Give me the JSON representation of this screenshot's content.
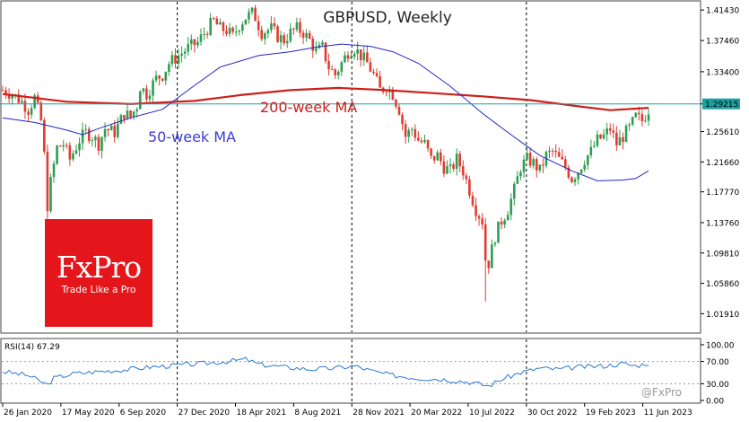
{
  "chart_data": [
    {
      "type": "candlestick",
      "title": "GBPUSD, Weekly",
      "x_tick_labels": [
        "26 Jan 2020",
        "17 May 2020",
        "6 Sep 2020",
        "27 Dec 2020",
        "18 Apr 2021",
        "8 Aug 2021",
        "28 Nov 2021",
        "20 Mar 2022",
        "10 Jul 2022",
        "30 Oct 2022",
        "19 Feb 2023",
        "11 Jun 2023"
      ],
      "y_tick_labels": [
        "1.41430",
        "1.37460",
        "1.33400",
        "1.29215",
        "1.25610",
        "1.21660",
        "1.17770",
        "1.13760",
        "1.09810",
        "1.05860",
        "1.01910"
      ],
      "ylim": [
        0.995,
        1.425
      ],
      "last_price": 1.29215,
      "last_price_label": "1.29215",
      "up_color": "#2e9e4f",
      "down_color": "#e03c31",
      "close_path": [
        [
          0,
          1.31
        ],
        [
          3,
          1.305
        ],
        [
          6,
          1.295
        ],
        [
          8,
          1.285
        ],
        [
          10,
          1.3
        ],
        [
          12,
          1.27
        ],
        [
          13,
          1.225
        ],
        [
          14,
          1.16
        ],
        [
          15,
          1.19
        ],
        [
          17,
          1.235
        ],
        [
          19,
          1.24
        ],
        [
          21,
          1.22
        ],
        [
          24,
          1.245
        ],
        [
          26,
          1.255
        ],
        [
          28,
          1.25
        ],
        [
          30,
          1.24
        ],
        [
          32,
          1.26
        ],
        [
          35,
          1.255
        ],
        [
          38,
          1.28
        ],
        [
          40,
          1.275
        ],
        [
          42,
          1.29
        ],
        [
          43,
          1.315
        ],
        [
          45,
          1.305
        ],
        [
          48,
          1.325
        ],
        [
          50,
          1.33
        ],
        [
          52,
          1.345
        ],
        [
          55,
          1.355
        ],
        [
          58,
          1.365
        ],
        [
          61,
          1.372
        ],
        [
          64,
          1.39
        ],
        [
          66,
          1.4
        ],
        [
          68,
          1.39
        ],
        [
          70,
          1.388
        ],
        [
          72,
          1.38
        ],
        [
          74,
          1.395
        ],
        [
          76,
          1.405
        ],
        [
          78,
          1.41
        ],
        [
          79,
          1.405
        ],
        [
          81,
          1.385
        ],
        [
          84,
          1.39
        ],
        [
          86,
          1.38
        ],
        [
          88,
          1.375
        ],
        [
          90,
          1.385
        ],
        [
          92,
          1.39
        ],
        [
          94,
          1.385
        ],
        [
          96,
          1.375
        ],
        [
          98,
          1.36
        ],
        [
          100,
          1.365
        ],
        [
          102,
          1.34
        ],
        [
          104,
          1.33
        ],
        [
          106,
          1.345
        ],
        [
          108,
          1.36
        ],
        [
          110,
          1.365
        ],
        [
          112,
          1.355
        ],
        [
          114,
          1.345
        ],
        [
          116,
          1.33
        ],
        [
          118,
          1.31
        ],
        [
          120,
          1.315
        ],
        [
          122,
          1.305
        ],
        [
          124,
          1.285
        ],
        [
          126,
          1.25
        ],
        [
          128,
          1.26
        ],
        [
          130,
          1.245
        ],
        [
          132,
          1.24
        ],
        [
          134,
          1.22
        ],
        [
          136,
          1.225
        ],
        [
          138,
          1.21
        ],
        [
          140,
          1.205
        ],
        [
          142,
          1.22
        ],
        [
          144,
          1.205
        ],
        [
          146,
          1.18
        ],
        [
          148,
          1.155
        ],
        [
          150,
          1.14
        ],
        [
          151,
          1.09
        ],
        [
          152,
          1.085
        ],
        [
          154,
          1.12
        ],
        [
          156,
          1.14
        ],
        [
          158,
          1.155
        ],
        [
          160,
          1.18
        ],
        [
          162,
          1.21
        ],
        [
          164,
          1.22
        ],
        [
          166,
          1.215
        ],
        [
          168,
          1.205
        ],
        [
          170,
          1.225
        ],
        [
          172,
          1.23
        ],
        [
          174,
          1.22
        ],
        [
          176,
          1.21
        ],
        [
          178,
          1.195
        ],
        [
          180,
          1.205
        ],
        [
          182,
          1.22
        ],
        [
          184,
          1.23
        ],
        [
          186,
          1.245
        ],
        [
          188,
          1.25
        ],
        [
          190,
          1.26
        ],
        [
          192,
          1.24
        ],
        [
          194,
          1.25
        ],
        [
          196,
          1.26
        ],
        [
          198,
          1.275
        ],
        [
          200,
          1.27
        ],
        [
          202,
          1.285
        ]
      ],
      "series": [
        {
          "name": "200-week MA",
          "color": "#cc1f1a",
          "values": [
            [
              0,
              1.305
            ],
            [
              20,
              1.295
            ],
            [
              40,
              1.292
            ],
            [
              60,
              1.296
            ],
            [
              75,
              1.304
            ],
            [
              90,
              1.31
            ],
            [
              105,
              1.313
            ],
            [
              120,
              1.31
            ],
            [
              135,
              1.306
            ],
            [
              150,
              1.302
            ],
            [
              165,
              1.297
            ],
            [
              180,
              1.289
            ],
            [
              190,
              1.284
            ],
            [
              202,
              1.287
            ]
          ]
        },
        {
          "name": "50-week MA",
          "color": "#2424c8",
          "values": [
            [
              0,
              1.274
            ],
            [
              10,
              1.268
            ],
            [
              20,
              1.258
            ],
            [
              25,
              1.252
            ],
            [
              30,
              1.26
            ],
            [
              40,
              1.274
            ],
            [
              50,
              1.285
            ],
            [
              58,
              1.31
            ],
            [
              68,
              1.34
            ],
            [
              80,
              1.355
            ],
            [
              90,
              1.36
            ],
            [
              98,
              1.366
            ],
            [
              106,
              1.37
            ],
            [
              115,
              1.367
            ],
            [
              122,
              1.36
            ],
            [
              130,
              1.345
            ],
            [
              140,
              1.315
            ],
            [
              150,
              1.28
            ],
            [
              158,
              1.255
            ],
            [
              168,
              1.225
            ],
            [
              178,
              1.205
            ],
            [
              186,
              1.192
            ],
            [
              194,
              1.193
            ],
            [
              198,
              1.195
            ],
            [
              202,
              1.205
            ]
          ]
        }
      ],
      "annotations": [
        "200-week MA",
        "50-week MA"
      ]
    },
    {
      "type": "line",
      "title": "RSI(14) 67.29",
      "y_tick_labels": [
        "100.00",
        "70.00",
        "30.00",
        "0.00"
      ],
      "ylim": [
        0,
        100
      ],
      "levels": [
        70,
        30
      ],
      "line_color": "#2a78d4",
      "values_path": [
        [
          0,
          52
        ],
        [
          8,
          45
        ],
        [
          14,
          28
        ],
        [
          16,
          40
        ],
        [
          22,
          48
        ],
        [
          30,
          52
        ],
        [
          38,
          55
        ],
        [
          46,
          60
        ],
        [
          54,
          63
        ],
        [
          62,
          66
        ],
        [
          70,
          70
        ],
        [
          76,
          74
        ],
        [
          80,
          65
        ],
        [
          88,
          60
        ],
        [
          96,
          56
        ],
        [
          104,
          58
        ],
        [
          110,
          62
        ],
        [
          116,
          52
        ],
        [
          122,
          45
        ],
        [
          130,
          40
        ],
        [
          138,
          38
        ],
        [
          146,
          33
        ],
        [
          152,
          26
        ],
        [
          156,
          38
        ],
        [
          162,
          50
        ],
        [
          168,
          58
        ],
        [
          174,
          56
        ],
        [
          180,
          60
        ],
        [
          188,
          62
        ],
        [
          194,
          66
        ],
        [
          198,
          62
        ],
        [
          202,
          67.29
        ]
      ]
    }
  ],
  "logo": {
    "main": "FxPro",
    "sub": "Trade Like a Pro"
  },
  "watermark": "@FxPro"
}
